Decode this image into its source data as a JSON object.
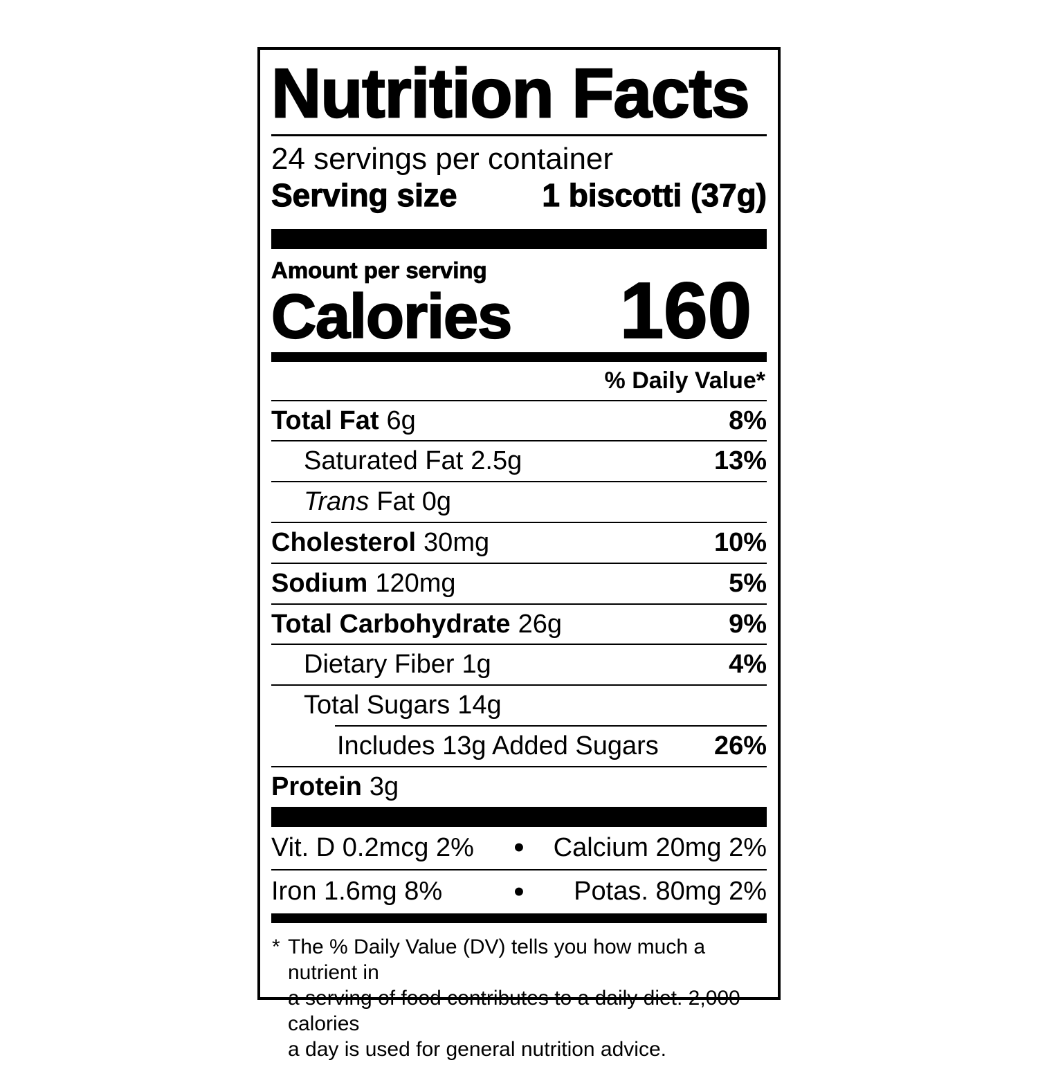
{
  "colors": {
    "ink": "#000000",
    "paper": "#ffffff"
  },
  "label": {
    "title": "Nutrition Facts",
    "servings_per_container": "24 servings per container",
    "serving_size": {
      "label": "Serving size",
      "value": "1 biscotti (37g)"
    },
    "amount_per_serving": "Amount per serving",
    "calories": {
      "label": "Calories",
      "value": "160"
    },
    "daily_value_header": "% Daily Value*",
    "nutrient_rows": [
      {
        "name": "Total Fat",
        "amount": "6g",
        "dv": "8%",
        "indent": 0,
        "name_bold": true,
        "name_italic": false,
        "rule_indent": 0
      },
      {
        "name": "Saturated Fat",
        "amount": "2.5g",
        "dv": "13%",
        "indent": 1,
        "name_bold": false,
        "name_italic": false,
        "rule_indent": 0
      },
      {
        "name": "Trans",
        "amount": "Fat 0g",
        "dv": "",
        "indent": 1,
        "name_bold": false,
        "name_italic": true,
        "rule_indent": 0
      },
      {
        "name": "Cholesterol",
        "amount": "30mg",
        "dv": "10%",
        "indent": 0,
        "name_bold": true,
        "name_italic": false,
        "rule_indent": 0
      },
      {
        "name": "Sodium",
        "amount": "120mg",
        "dv": "5%",
        "indent": 0,
        "name_bold": true,
        "name_italic": false,
        "rule_indent": 0
      },
      {
        "name": "Total Carbohydrate",
        "amount": "26g",
        "dv": "9%",
        "indent": 0,
        "name_bold": true,
        "name_italic": false,
        "rule_indent": 0
      },
      {
        "name": "Dietary Fiber",
        "amount": "1g",
        "dv": "4%",
        "indent": 1,
        "name_bold": false,
        "name_italic": false,
        "rule_indent": 0
      },
      {
        "name": "Total Sugars",
        "amount": "14g",
        "dv": "",
        "indent": 1,
        "name_bold": false,
        "name_italic": false,
        "rule_indent": 0
      },
      {
        "name": "Includes 13g Added Sugars",
        "amount": "",
        "dv": "26%",
        "indent": 2,
        "name_bold": false,
        "name_italic": false,
        "rule_indent": 92
      },
      {
        "name": "Protein",
        "amount": "3g",
        "dv": "",
        "indent": 0,
        "name_bold": true,
        "name_italic": false,
        "rule_indent": 0
      }
    ],
    "micronutrient_rows": [
      {
        "left": "Vit. D 0.2mcg 2%",
        "right": "Calcium 20mg 2%"
      },
      {
        "left": "Iron 1.6mg 8%",
        "right": "Potas. 80mg 2%"
      }
    ],
    "bullet": "•",
    "footnote": {
      "marker": "*",
      "lines": [
        "The % Daily Value (DV) tells you how much a nutrient in",
        "a serving of food contributes to a daily diet. 2,000 calories",
        "a day is used for general nutrition advice."
      ]
    }
  }
}
